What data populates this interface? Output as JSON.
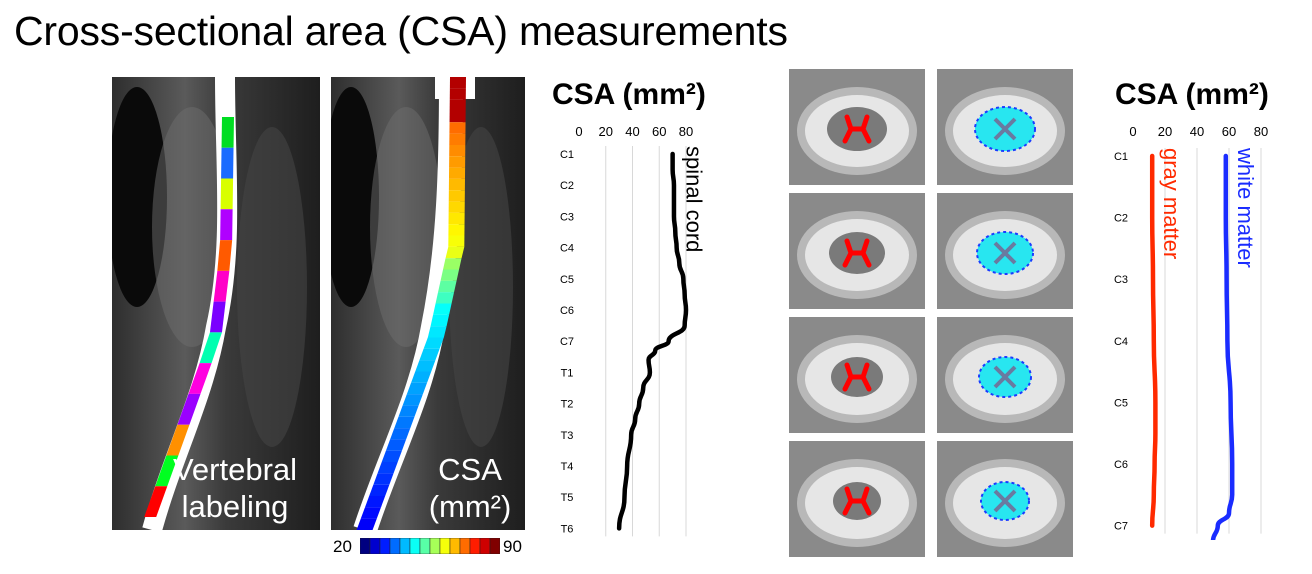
{
  "page_title": "Cross-sectional area (CSA) measurements",
  "panels": {
    "vertebral_label_line1": "Vertebral",
    "vertebral_label_line2": "labeling",
    "csa_label_line1": "CSA",
    "csa_label_line2": "(mm²)"
  },
  "colorbar": {
    "min_label": "20",
    "max_label": "90",
    "colormap": "jet"
  },
  "colors": {
    "spinal_cord": "#000000",
    "gray_matter": "#ff2a00",
    "white_matter": "#1a2cff",
    "wm_mask": "#28e6f0",
    "gm_mask": "#ff0000"
  },
  "chart_data": [
    {
      "type": "line",
      "title": "CSA (mm²)",
      "orientation": "vertical-levels",
      "xlim": [
        0,
        80
      ],
      "xticks": [
        "0",
        "20",
        "40",
        "60",
        "80"
      ],
      "grid": true,
      "levels": [
        "C1",
        "C2",
        "C3",
        "C4",
        "C5",
        "C6",
        "C7",
        "T1",
        "T2",
        "T3",
        "T4",
        "T5",
        "T6"
      ],
      "series": [
        {
          "name": "spinal cord",
          "color": "#000000",
          "points": [
            [
              0,
              70
            ],
            [
              0.5,
              70
            ],
            [
              1,
              71
            ],
            [
              1.5,
              71
            ],
            [
              2,
              71
            ],
            [
              2.5,
              72
            ],
            [
              3,
              73
            ],
            [
              3.5,
              75
            ],
            [
              4,
              78
            ],
            [
              4.5,
              79
            ],
            [
              5,
              80
            ],
            [
              5.5,
              79
            ],
            [
              6,
              67
            ],
            [
              6.3,
              57
            ],
            [
              6.6,
              52
            ],
            [
              7,
              53
            ],
            [
              7.5,
              48
            ],
            [
              8,
              45
            ],
            [
              8.5,
              42
            ],
            [
              9,
              39
            ],
            [
              10,
              36
            ],
            [
              11,
              34
            ],
            [
              12,
              30
            ]
          ]
        }
      ]
    },
    {
      "type": "line",
      "title": "CSA (mm²)",
      "orientation": "vertical-levels",
      "xlim": [
        0,
        80
      ],
      "xticks": [
        "0",
        "20",
        "40",
        "60",
        "80"
      ],
      "grid": true,
      "levels": [
        "C1",
        "C2",
        "C3",
        "C4",
        "C5",
        "C6",
        "C7"
      ],
      "series": [
        {
          "name": "gray matter",
          "color": "#ff2a00",
          "points": [
            [
              0,
              12
            ],
            [
              1,
              12
            ],
            [
              2,
              12.5
            ],
            [
              3,
              13
            ],
            [
              4,
              14
            ],
            [
              4.5,
              14
            ],
            [
              5,
              13.5
            ],
            [
              5.5,
              13
            ],
            [
              6,
              12
            ]
          ]
        },
        {
          "name": "white matter",
          "color": "#1a2cff",
          "points": [
            [
              0,
              58
            ],
            [
              1,
              58
            ],
            [
              2,
              58.5
            ],
            [
              3,
              59
            ],
            [
              4,
              61
            ],
            [
              5,
              62
            ],
            [
              5.5,
              62
            ],
            [
              5.8,
              60
            ],
            [
              6,
              53
            ],
            [
              6.25,
              50
            ],
            [
              6.4,
              45
            ],
            [
              6.55,
              40
            ]
          ]
        }
      ]
    }
  ]
}
